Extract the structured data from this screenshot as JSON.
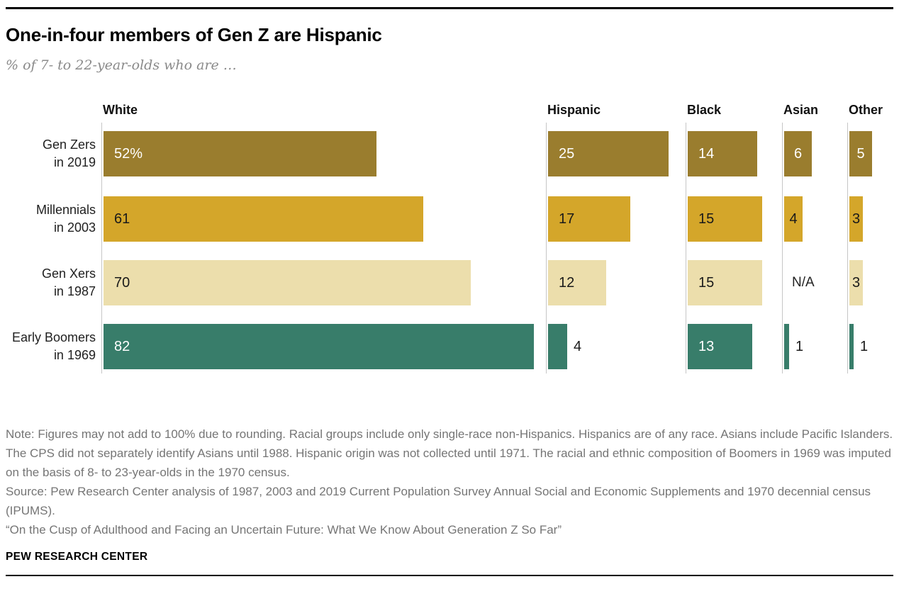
{
  "page": {
    "title": "One-in-four members of Gen Z are Hispanic",
    "subtitle": "% of 7- to 22-year-olds who are …"
  },
  "chart_data": {
    "type": "bar",
    "orientation": "horizontal",
    "unit": "%",
    "title": "One-in-four members of Gen Z are Hispanic",
    "subtitle": "% of 7- to 22-year-olds who are …",
    "group_headers": [
      "White",
      "Hispanic",
      "Black",
      "Asian",
      "Other"
    ],
    "xlim": [
      0,
      100
    ],
    "grid": false,
    "legend": "none",
    "axis_line_color": "#c6c6c6",
    "rows": [
      {
        "label_line1": "Gen Zers",
        "label_line2": "in 2019",
        "bar_color": "#9A7D2E",
        "value_text_color": "#ffffff",
        "values": [
          52,
          25,
          14,
          6,
          5
        ],
        "value_labels": [
          "52%",
          "25",
          "14",
          "6",
          "5"
        ],
        "label_outside": [
          false,
          false,
          false,
          false,
          false
        ]
      },
      {
        "label_line1": "Millennials",
        "label_line2": "in 2003",
        "bar_color": "#D4A62A",
        "value_text_color": "#1a1a1a",
        "values": [
          61,
          17,
          15,
          4,
          3
        ],
        "value_labels": [
          "61",
          "17",
          "15",
          "4",
          "3"
        ],
        "label_outside": [
          false,
          false,
          false,
          false,
          false
        ]
      },
      {
        "label_line1": "Gen Xers",
        "label_line2": "in 1987",
        "bar_color": "#ECDEAC",
        "value_text_color": "#1a1a1a",
        "values": [
          70,
          12,
          15,
          null,
          3
        ],
        "value_labels": [
          "70",
          "12",
          "15",
          "N/A",
          "3"
        ],
        "label_outside": [
          false,
          false,
          false,
          false,
          false
        ]
      },
      {
        "label_line1": "Early Boomers",
        "label_line2": "in 1969",
        "bar_color": "#387D6A",
        "value_text_color": "#ffffff",
        "values": [
          82,
          4,
          13,
          1,
          1
        ],
        "value_labels": [
          "82",
          "4",
          "13",
          "1",
          "1"
        ],
        "label_outside": [
          false,
          true,
          false,
          true,
          true
        ]
      }
    ]
  },
  "footer": {
    "note": "Note: Figures may not add to 100% due to rounding. Racial groups include only single-race non-Hispanics. Hispanics are of any race. Asians include Pacific Islanders. The CPS did not separately identify Asians until 1988. Hispanic origin was not collected until 1971. The racial and ethnic composition of Boomers in 1969 was imputed on the basis of 8- to 23-year-olds in the 1970 census.",
    "source": "Source: Pew Research Center analysis of 1987, 2003 and 2019 Current Population Survey Annual Social and Economic Supplements and 1970 decennial census (IPUMS).",
    "report": "“On the Cusp of Adulthood and Facing an Uncertain Future: What We Know About Generation Z So Far”",
    "brand": "PEW RESEARCH CENTER"
  }
}
